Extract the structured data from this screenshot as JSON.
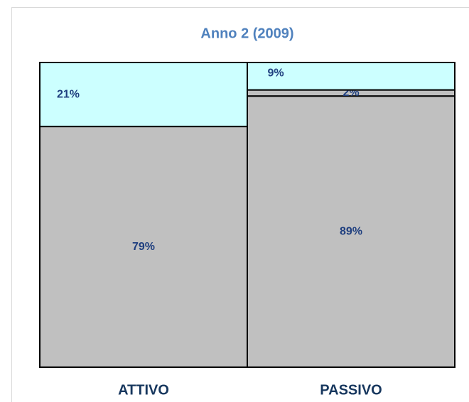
{
  "chart_data": {
    "type": "stacked_bar_100",
    "title": "Anno 2 (2009)",
    "categories": [
      "ATTIVO",
      "PASSIVO"
    ],
    "ylim": [
      0,
      100
    ],
    "series": [
      {
        "color": "#c0c0c0",
        "values": [
          79,
          89
        ],
        "value_labels": [
          "79%",
          "89%"
        ]
      },
      {
        "color": "#c0c0c0",
        "values": [
          null,
          2
        ],
        "value_labels": [
          null,
          "2%"
        ]
      },
      {
        "color": "#ccffff",
        "values": [
          21,
          9
        ],
        "value_labels": [
          "21%",
          "9%"
        ]
      }
    ]
  }
}
